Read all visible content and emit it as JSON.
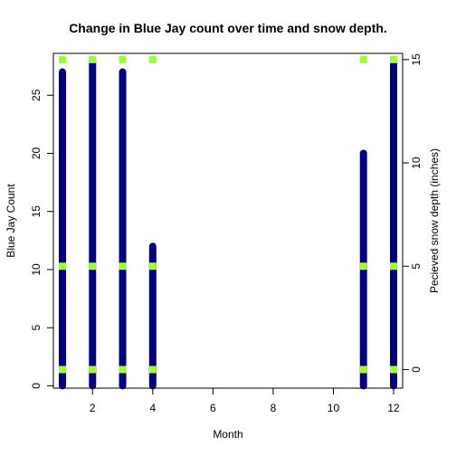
{
  "chart_data": {
    "type": "scatter",
    "title": "Change in  Blue Jay count over time and snow depth.",
    "xlabel": "Month",
    "ylabel": "Blue Jay Count",
    "ylabel_right": "Pecieved snow depth (inches)",
    "xlim": [
      0.7,
      12.3
    ],
    "ylim": [
      -0.2,
      28.6
    ],
    "ylim_right": [
      -0.9,
      15.3
    ],
    "x_ticks": [
      2,
      4,
      6,
      8,
      10,
      12
    ],
    "y_ticks": [
      0,
      5,
      10,
      15,
      20,
      25
    ],
    "y_ticks_right": [
      0,
      5,
      10,
      15
    ],
    "grid": false,
    "series": [
      {
        "axis": "left",
        "color": "#000080",
        "marker": "filled-circle",
        "columns": [
          {
            "x": 1,
            "y_min": 0,
            "y_max": 27
          },
          {
            "x": 2,
            "y_min": 0,
            "y_max": 28
          },
          {
            "x": 3,
            "y_min": 0,
            "y_max": 27
          },
          {
            "x": 4,
            "y_min": 0,
            "y_max": 12
          },
          {
            "x": 11,
            "y_min": 0,
            "y_max": 20
          },
          {
            "x": 12,
            "y_min": 0,
            "y_max": 28
          }
        ]
      },
      {
        "axis": "right",
        "color": "#99ff33",
        "marker": "filled-square",
        "points": [
          {
            "x": 1,
            "y": 15
          },
          {
            "x": 1,
            "y": 5
          },
          {
            "x": 1,
            "y": 0
          },
          {
            "x": 2,
            "y": 15
          },
          {
            "x": 2,
            "y": 5
          },
          {
            "x": 2,
            "y": 0
          },
          {
            "x": 3,
            "y": 15
          },
          {
            "x": 3,
            "y": 5
          },
          {
            "x": 3,
            "y": 0
          },
          {
            "x": 4,
            "y": 15
          },
          {
            "x": 4,
            "y": 5
          },
          {
            "x": 4,
            "y": 0
          },
          {
            "x": 11,
            "y": 15
          },
          {
            "x": 11,
            "y": 5
          },
          {
            "x": 11,
            "y": 0
          },
          {
            "x": 12,
            "y": 15
          },
          {
            "x": 12,
            "y": 5
          },
          {
            "x": 12,
            "y": 0
          }
        ]
      }
    ]
  }
}
